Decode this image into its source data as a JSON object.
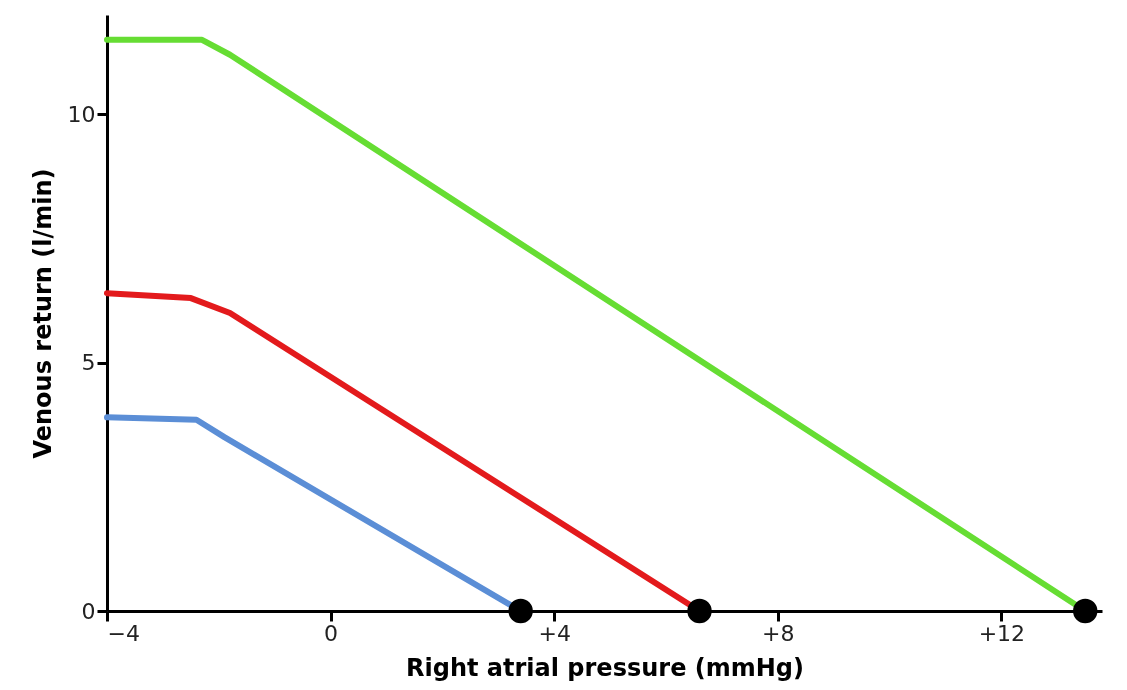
{
  "chart_data": {
    "type": "line",
    "xlabel": "Right atrial pressure (mmHg)",
    "ylabel": "Venous return (l/min)",
    "xlim": [
      -4,
      13.8
    ],
    "ylim": [
      0,
      12
    ],
    "xticks": [
      -4,
      0,
      {
        "value": 4,
        "label": "+4"
      },
      {
        "value": 8,
        "label": "+8"
      },
      {
        "value": 12,
        "label": "+12"
      }
    ],
    "yticks": [
      0,
      5,
      10
    ],
    "grid": false,
    "line_style": "solid",
    "series": [
      {
        "color": "#66dd33",
        "x": [
          -4,
          -2.3,
          -1.8,
          13.5
        ],
        "values": [
          11.5,
          11.5,
          11.2,
          0
        ]
      },
      {
        "color": "#e31a1c",
        "x": [
          -4,
          -2.5,
          -1.8,
          6.6
        ],
        "values": [
          6.4,
          6.3,
          6.0,
          0
        ]
      },
      {
        "color": "#5b8ed6",
        "x": [
          -4,
          -2.4,
          -1.9,
          3.4
        ],
        "values": [
          3.9,
          3.85,
          3.5,
          0
        ]
      },
      {
        "type": "scatter",
        "marker": "circle",
        "color": "#000000",
        "x": [
          3.4,
          6.6,
          13.5
        ],
        "values": [
          0,
          0,
          0
        ]
      }
    ]
  }
}
